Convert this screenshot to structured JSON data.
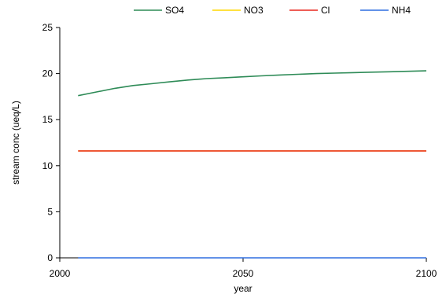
{
  "chart_data": {
    "type": "line",
    "xlabel": "year",
    "ylabel": "stream conc (ueq/L)",
    "xlim": [
      2000,
      2100
    ],
    "ylim": [
      0,
      25
    ],
    "xticks": [
      2000,
      2050,
      2100
    ],
    "yticks": [
      0,
      5,
      10,
      15,
      20,
      25
    ],
    "x_tick_labels": [
      "2000",
      "2050",
      "2100"
    ],
    "y_tick_labels": [
      "0",
      "5",
      "10",
      "15",
      "20",
      "25"
    ],
    "legend_position": "top-right",
    "grid": false,
    "series": [
      {
        "name": "SO4",
        "color": "#2e8b57",
        "x": [
          2005,
          2010,
          2015,
          2020,
          2025,
          2030,
          2035,
          2040,
          2045,
          2050,
          2055,
          2060,
          2065,
          2070,
          2075,
          2080,
          2085,
          2090,
          2095,
          2100
        ],
        "y": [
          17.6,
          18.0,
          18.4,
          18.7,
          18.9,
          19.1,
          19.3,
          19.45,
          19.55,
          19.65,
          19.75,
          19.85,
          19.92,
          20.0,
          20.05,
          20.1,
          20.15,
          20.2,
          20.25,
          20.3
        ]
      },
      {
        "name": "NO3",
        "color": "#ffd700",
        "x": [
          2005,
          2100
        ],
        "y": [
          11.6,
          11.6
        ]
      },
      {
        "name": "Cl",
        "color": "#e8281e",
        "x": [
          2005,
          2100
        ],
        "y": [
          11.6,
          11.6
        ]
      },
      {
        "name": "NH4",
        "color": "#2f6fe0",
        "x": [
          2005,
          2100
        ],
        "y": [
          0,
          0
        ]
      }
    ]
  }
}
